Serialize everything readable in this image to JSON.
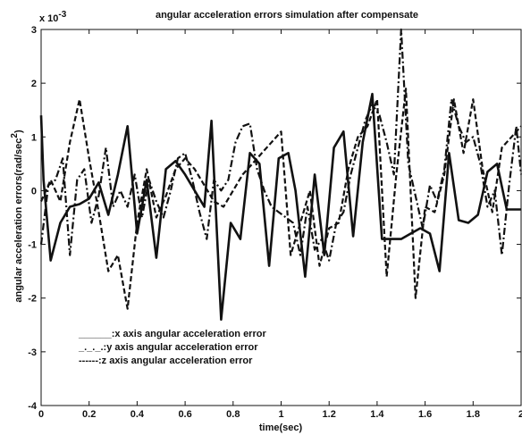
{
  "chart_data": {
    "type": "line",
    "title": "angular acceleration errors simulation after compensate",
    "xlabel": "time(sec)",
    "ylabel_main": "angular acceleration errors(rad/sec",
    "ylabel_sup": "2",
    "ylabel_close": ")",
    "y_multiplier": "x 10",
    "y_multiplier_exp": "-3",
    "xlim": [
      0,
      2
    ],
    "ylim": [
      -4,
      3
    ],
    "xticks": [
      "0",
      "0.2",
      "0.4",
      "0.6",
      "0.8",
      "1",
      "1.2",
      "1.4",
      "1.6",
      "1.8",
      "2"
    ],
    "yticks": [
      "-4",
      "-3",
      "-2",
      "-1",
      "0",
      "1",
      "2",
      "3"
    ],
    "grid": false,
    "legend_position": "lower-left",
    "series": [
      {
        "name": ":x axis angular acceleration error",
        "legend_sample": "______",
        "style": "solid",
        "color": "#111111",
        "x": [
          0,
          0.01,
          0.04,
          0.08,
          0.12,
          0.16,
          0.2,
          0.24,
          0.28,
          0.32,
          0.36,
          0.4,
          0.44,
          0.48,
          0.52,
          0.56,
          0.6,
          0.64,
          0.68,
          0.71,
          0.75,
          0.79,
          0.83,
          0.87,
          0.91,
          0.95,
          0.99,
          1.03,
          1.06,
          1.1,
          1.14,
          1.18,
          1.22,
          1.26,
          1.3,
          1.34,
          1.38,
          1.42,
          1.46,
          1.5,
          1.54,
          1.58,
          1.62,
          1.66,
          1.7,
          1.74,
          1.78,
          1.82,
          1.86,
          1.9,
          1.94,
          2.0
        ],
        "y": [
          1.4,
          0.2,
          -1.3,
          -0.6,
          -0.3,
          -0.25,
          -0.15,
          0.15,
          -0.45,
          0.3,
          1.2,
          -0.8,
          0.2,
          -1.25,
          0.4,
          0.55,
          0.3,
          0.0,
          -0.3,
          1.3,
          -2.4,
          -0.6,
          -0.9,
          0.7,
          0.5,
          -1.4,
          0.6,
          0.7,
          0.0,
          -1.6,
          0.3,
          -1.2,
          0.8,
          1.1,
          -0.85,
          0.9,
          1.8,
          -0.9,
          -0.9,
          -0.9,
          -0.8,
          -0.7,
          -0.8,
          -1.5,
          0.7,
          -0.55,
          -0.6,
          -0.45,
          0.35,
          0.5,
          -0.35,
          -0.35
        ]
      },
      {
        "name": ":y axis angular acceleration error",
        "legend_sample": "_._._.",
        "style": "dashdot",
        "color": "#111111",
        "x": [
          0,
          0.03,
          0.06,
          0.09,
          0.12,
          0.15,
          0.18,
          0.21,
          0.24,
          0.27,
          0.3,
          0.33,
          0.36,
          0.39,
          0.42,
          0.45,
          0.48,
          0.51,
          0.54,
          0.57,
          0.6,
          0.63,
          0.66,
          0.69,
          0.72,
          0.75,
          0.78,
          0.81,
          0.84,
          0.87,
          0.9,
          0.93,
          0.96,
          0.99,
          1.02,
          1.05,
          1.08,
          1.11,
          1.14,
          1.17,
          1.2,
          1.23,
          1.26,
          1.29,
          1.32,
          1.35,
          1.38,
          1.41,
          1.44,
          1.47,
          1.5,
          1.53,
          1.56,
          1.59,
          1.62,
          1.65,
          1.68,
          1.71,
          1.74,
          1.77,
          1.8,
          1.83,
          1.86,
          1.89,
          1.92,
          1.95,
          1.98,
          2.0
        ],
        "y": [
          -1.0,
          0.1,
          0.2,
          0.6,
          -1.2,
          0.2,
          0.4,
          -0.6,
          -0.1,
          0.8,
          -0.3,
          0.0,
          -0.3,
          0.3,
          -0.5,
          0.2,
          -0.2,
          -0.5,
          0.0,
          0.6,
          0.7,
          0.2,
          -0.4,
          -0.9,
          0.2,
          0.0,
          0.2,
          0.9,
          1.2,
          1.25,
          0.4,
          0.0,
          -0.3,
          -0.4,
          -0.5,
          -0.6,
          -1.2,
          -0.3,
          -1.1,
          -0.9,
          -1.3,
          -0.6,
          -0.4,
          0.3,
          0.8,
          1.3,
          1.6,
          1.4,
          0.9,
          0.3,
          3.0,
          0.5,
          -0.1,
          -0.7,
          0.1,
          -0.2,
          0.4,
          1.7,
          1.2,
          0.9,
          1.0,
          0.5,
          -0.3,
          0.0,
          -1.2,
          0.1,
          1.2,
          0.3
        ]
      },
      {
        "name": ":z axis angular acceleration error",
        "legend_sample": "------",
        "style": "dashed",
        "color": "#111111",
        "x": [
          0,
          0.04,
          0.08,
          0.12,
          0.16,
          0.2,
          0.24,
          0.28,
          0.32,
          0.36,
          0.4,
          0.44,
          0.48,
          0.52,
          0.56,
          0.6,
          0.64,
          0.68,
          0.72,
          0.76,
          0.8,
          0.84,
          0.88,
          0.92,
          0.96,
          1.0,
          1.04,
          1.08,
          1.12,
          1.16,
          1.2,
          1.24,
          1.28,
          1.32,
          1.36,
          1.4,
          1.44,
          1.48,
          1.52,
          1.56,
          1.6,
          1.64,
          1.68,
          1.72,
          1.76,
          1.8,
          1.84,
          1.88,
          1.92,
          1.96,
          2.0
        ],
        "y": [
          -0.2,
          0.2,
          -0.2,
          0.9,
          1.7,
          0.6,
          -0.4,
          -1.5,
          -1.2,
          -2.2,
          -0.6,
          0.4,
          -0.5,
          -0.1,
          0.4,
          0.6,
          0.4,
          0.1,
          -0.2,
          -0.3,
          0.0,
          0.3,
          0.5,
          0.7,
          0.9,
          1.1,
          -1.2,
          -0.6,
          0.0,
          -1.4,
          -0.7,
          -0.6,
          0.4,
          1.0,
          1.2,
          1.7,
          -1.6,
          0.3,
          1.9,
          -2.0,
          -0.3,
          -0.4,
          0.3,
          1.7,
          0.7,
          1.7,
          0.4,
          -0.4,
          0.8,
          1.0,
          1.2
        ]
      }
    ]
  }
}
